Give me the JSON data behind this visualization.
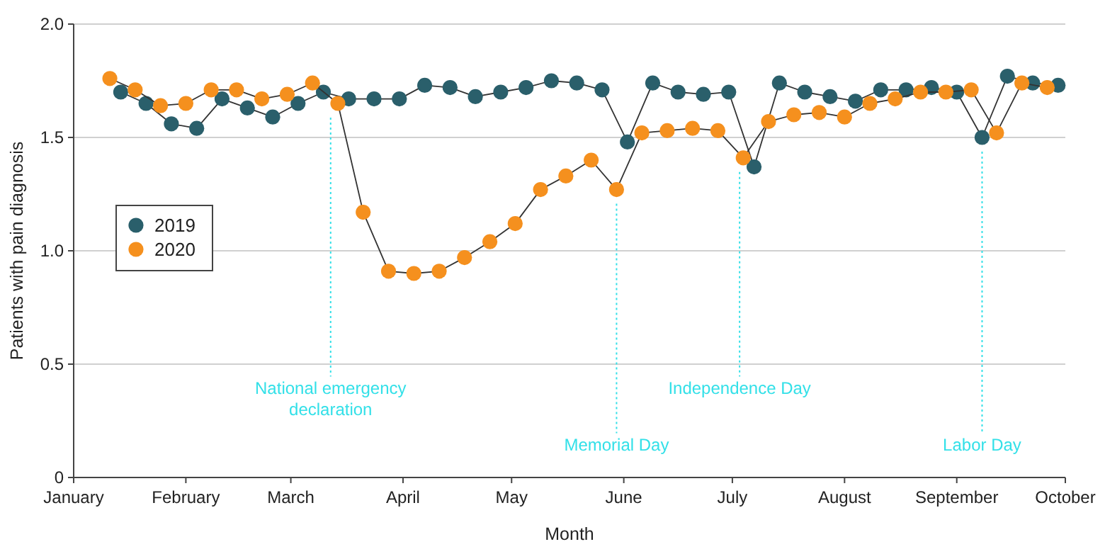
{
  "chart_data": {
    "type": "line",
    "xlabel": "Month",
    "ylabel": "Patients with pain diagnosis",
    "xlim": [
      "--01-01",
      "--10-01"
    ],
    "xticks": [
      {
        "value": "--01-01",
        "label": "January"
      },
      {
        "value": "--02-01",
        "label": "February"
      },
      {
        "value": "--03-01",
        "label": "March"
      },
      {
        "value": "--04-01",
        "label": "April"
      },
      {
        "value": "--05-01",
        "label": "May"
      },
      {
        "value": "--06-01",
        "label": "June"
      },
      {
        "value": "--07-01",
        "label": "July"
      },
      {
        "value": "--08-01",
        "label": "August"
      },
      {
        "value": "--09-01",
        "label": "September"
      },
      {
        "value": "--10-01",
        "label": "October"
      }
    ],
    "ylim": [
      0,
      2
    ],
    "yticks": [
      0,
      {
        "value": 0.5,
        "label": "0.5"
      },
      {
        "value": 1,
        "label": "1.0"
      },
      {
        "value": 1.5,
        "label": "1.5"
      },
      {
        "value": 2,
        "label": "2.0"
      }
    ],
    "grid": "y",
    "legend": "left",
    "marker": "circle",
    "line_style": "solid",
    "series": [
      {
        "name": "2019",
        "color": "#2a5f6b",
        "x": [
          "--01-14",
          "--01-21",
          "--01-28",
          "--02-04",
          "--02-11",
          "--02-18",
          "--02-25",
          "--03-03",
          "--03-10",
          "--03-17",
          "--03-24",
          "--03-31",
          "--04-07",
          "--04-14",
          "--04-21",
          "--04-28",
          "--05-05",
          "--05-12",
          "--05-19",
          "--05-26",
          "--06-02",
          "--06-09",
          "--06-16",
          "--06-23",
          "--06-30",
          "--07-07",
          "--07-14",
          "--07-21",
          "--07-28",
          "--08-04",
          "--08-11",
          "--08-18",
          "--08-25",
          "--09-01",
          "--09-08",
          "--09-15",
          "--09-22",
          "--09-29"
        ],
        "values": [
          1.7,
          1.65,
          1.56,
          1.54,
          1.67,
          1.63,
          1.59,
          1.65,
          1.7,
          1.67,
          1.67,
          1.67,
          1.73,
          1.72,
          1.68,
          1.7,
          1.72,
          1.75,
          1.74,
          1.71,
          1.48,
          1.74,
          1.7,
          1.69,
          1.7,
          1.37,
          1.74,
          1.7,
          1.68,
          1.66,
          1.71,
          1.71,
          1.72,
          1.7,
          1.5,
          1.77,
          1.74,
          1.73
        ]
      },
      {
        "name": "2020",
        "color": "#f5901e",
        "x": [
          "--01-11",
          "--01-18",
          "--01-25",
          "--02-01",
          "--02-08",
          "--02-15",
          "--02-22",
          "--02-29",
          "--03-07",
          "--03-14",
          "--03-21",
          "--03-28",
          "--04-04",
          "--04-11",
          "--04-18",
          "--04-25",
          "--05-02",
          "--05-09",
          "--05-16",
          "--05-23",
          "--05-30",
          "--06-06",
          "--06-13",
          "--06-20",
          "--06-27",
          "--07-04",
          "--07-11",
          "--07-18",
          "--07-25",
          "--08-01",
          "--08-08",
          "--08-15",
          "--08-22",
          "--08-29",
          "--09-05",
          "--09-12",
          "--09-19",
          "--09-26"
        ],
        "values": [
          1.76,
          1.71,
          1.64,
          1.65,
          1.71,
          1.71,
          1.67,
          1.69,
          1.74,
          1.65,
          1.17,
          0.91,
          0.9,
          0.91,
          0.97,
          1.04,
          1.12,
          1.27,
          1.33,
          1.4,
          1.27,
          1.52,
          1.53,
          1.54,
          1.53,
          1.41,
          1.57,
          1.6,
          1.61,
          1.59,
          1.65,
          1.67,
          1.7,
          1.7,
          1.71,
          1.52,
          1.74,
          1.72
        ]
      }
    ],
    "ref_lines": [
      {
        "axis": "x",
        "value": "--03-12",
        "label": "National emergency declaration",
        "color": "#33e0e8",
        "line_style": "dotted"
      },
      {
        "axis": "x",
        "value": "--05-30",
        "label": "Memorial Day",
        "color": "#33e0e8",
        "line_style": "dotted"
      },
      {
        "axis": "x",
        "value": "--07-03",
        "label": "Independence Day",
        "color": "#33e0e8",
        "line_style": "dotted"
      },
      {
        "axis": "x",
        "value": "--09-08",
        "label": "Labor Day",
        "color": "#33e0e8",
        "line_style": "dotted"
      }
    ]
  }
}
